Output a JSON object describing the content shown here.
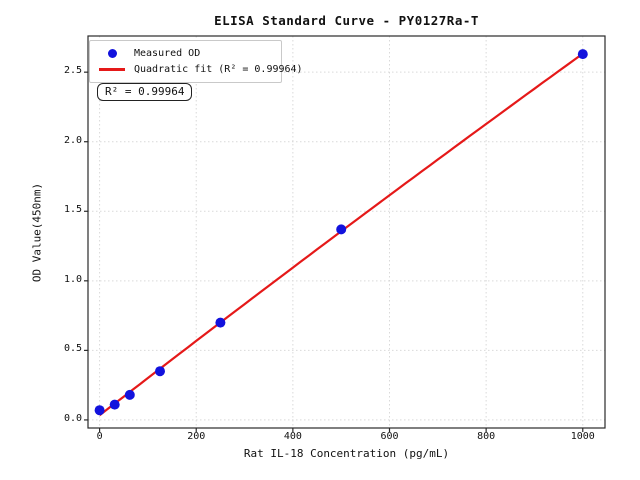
{
  "chart_data": {
    "type": "scatter",
    "title": "ELISA Standard Curve - PY0127Ra-T",
    "xlabel": "Rat IL-18 Concentration (pg/mL)",
    "ylabel": "OD Value(450nm)",
    "xlim": [
      -24,
      1046
    ],
    "ylim": [
      -0.058,
      2.76
    ],
    "x_ticks": [
      0,
      200,
      400,
      600,
      800,
      1000
    ],
    "y_ticks": [
      0.0,
      0.5,
      1.0,
      1.5,
      2.0,
      2.5
    ],
    "grid": true,
    "legend_position": "upper left",
    "series": [
      {
        "name": "Measured OD",
        "type": "scatter",
        "color": "#1212dd",
        "x": [
          0,
          31.25,
          62.5,
          125,
          250,
          500,
          1000
        ],
        "y": [
          0.07,
          0.11,
          0.18,
          0.35,
          0.7,
          1.37,
          2.63
        ]
      },
      {
        "name": "Quadratic fit (R² = 0.99964)",
        "type": "line",
        "fit": "quadratic",
        "color": "#e51919",
        "r_squared": 0.99964
      }
    ],
    "annotation": "R² = 0.99964",
    "colors": {
      "frame": "#2a2a2a",
      "grid": "#d9d9d9",
      "background": "#ffffff"
    }
  }
}
